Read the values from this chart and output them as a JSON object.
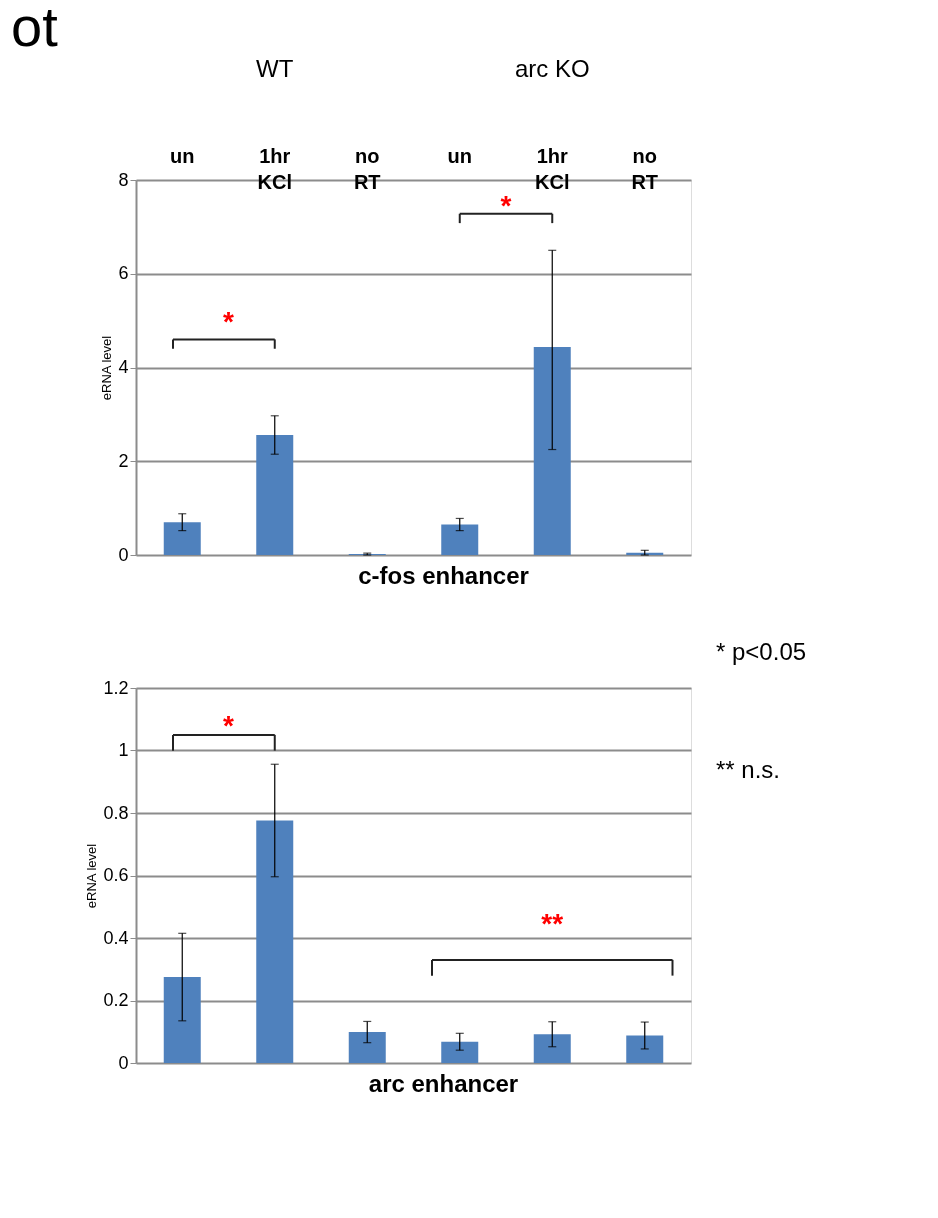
{
  "chart_data": [
    {
      "type": "bar",
      "title": "ot",
      "categories": [
        "un",
        "1hr KCl",
        "no RT",
        "un",
        "1hr KCl",
        "no RT"
      ],
      "values": [
        0.7,
        2.56,
        0.02,
        0.65,
        4.44,
        0.05
      ],
      "errors": [
        0.18,
        0.41,
        0.02,
        0.13,
        [
          2.25,
          6.5
        ],
        0.05
      ],
      "color": "#4f81bd",
      "ylim": [
        0,
        8
      ],
      "yticks": [
        0,
        2,
        4,
        6,
        8
      ],
      "grid": "y",
      "xlabel": "c-fos enhancer",
      "ylabel": "eRNA level",
      "annotations": [
        "WT",
        "arc KO",
        "*",
        "*"
      ]
    },
    {
      "type": "bar",
      "categories": [
        null,
        null,
        null,
        null,
        null,
        null
      ],
      "values": [
        0.275,
        0.776,
        0.099,
        0.068,
        0.092,
        0.088
      ],
      "errors": [
        0.14,
        0.18,
        0.034,
        0.027,
        0.04,
        0.043
      ],
      "color": "#4f81bd",
      "ylim": [
        0,
        1.2
      ],
      "yticks": [
        0,
        0.2,
        0.4,
        0.6,
        0.8,
        1,
        1.2
      ],
      "grid": "y",
      "xlabel": "arc enhancer",
      "ylabel": "eRNA level",
      "annotations": [
        "*",
        "**",
        "* p<0.05",
        "** n.s."
      ]
    }
  ]
}
